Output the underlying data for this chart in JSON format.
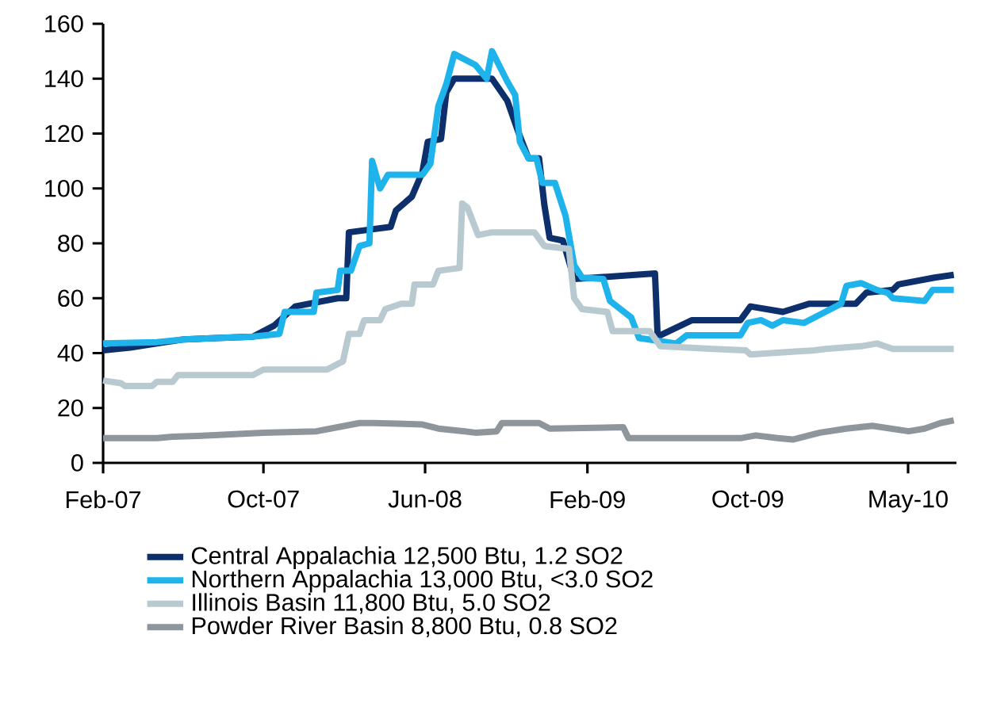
{
  "chart_data": {
    "type": "line",
    "xlim": [
      "2007-02-01",
      "2010-08-12"
    ],
    "xticks": [
      {
        "value": "2007-02-01",
        "label": "Feb-07"
      },
      {
        "value": "2007-10-01",
        "label": "Oct-07"
      },
      {
        "value": "2008-06-01",
        "label": "Jun-08"
      },
      {
        "value": "2009-02-01",
        "label": "Feb-09"
      },
      {
        "value": "2009-10-01",
        "label": "Oct-09"
      },
      {
        "value": "2010-05-31",
        "label": "May-10"
      }
    ],
    "ylim": [
      0,
      160
    ],
    "yticks": [
      0,
      20,
      40,
      60,
      80,
      100,
      120,
      140,
      160
    ],
    "grid": false,
    "legend": "bottom",
    "marker": "none",
    "line_style": "solid",
    "series": [
      {
        "name": "Central Appalachia 12,500 Btu, 1.2 SO2",
        "color": "#0d2f6b",
        "x": [
          "2007-02-01",
          "2007-03-14",
          "2007-04-23",
          "2007-06-03",
          "2007-09-15",
          "2007-10-17",
          "2007-11-18",
          "2008-01-21",
          "2008-02-03",
          "2008-02-07",
          "2008-04-10",
          "2008-04-18",
          "2008-05-12",
          "2008-05-28",
          "2008-06-05",
          "2008-06-25",
          "2008-07-03",
          "2008-07-15",
          "2008-09-10",
          "2008-10-03",
          "2008-10-19",
          "2008-11-04",
          "2008-11-20",
          "2008-11-28",
          "2008-12-06",
          "2008-12-26",
          "2009-01-12",
          "2009-05-14",
          "2009-05-18",
          "2009-07-09",
          "2009-09-20",
          "2009-10-05",
          "2009-11-23",
          "2010-01-02",
          "2010-03-13",
          "2010-03-29",
          "2010-05-08",
          "2010-05-16",
          "2010-07-10",
          "2010-08-08"
        ],
        "values": [
          41,
          42,
          43.5,
          45,
          46,
          50,
          57,
          60,
          60,
          84,
          86,
          92,
          97,
          106,
          117,
          118,
          135,
          140,
          140,
          132,
          121,
          111,
          111,
          94,
          82,
          81,
          67,
          69,
          46,
          52,
          52,
          57,
          55,
          58,
          58,
          62,
          63,
          65,
          67.5,
          68.5
        ]
      },
      {
        "name": "Northern Appalachia 13,000 Btu, <3.0 SO2",
        "color": "#1fb3ec",
        "x": [
          "2007-02-01",
          "2007-04-23",
          "2007-06-03",
          "2007-09-15",
          "2007-10-25",
          "2007-11-02",
          "2007-12-16",
          "2007-12-20",
          "2008-01-21",
          "2008-01-25",
          "2008-02-10",
          "2008-02-23",
          "2008-03-09",
          "2008-03-13",
          "2008-03-25",
          "2008-04-06",
          "2008-05-28",
          "2008-06-09",
          "2008-06-21",
          "2008-07-03",
          "2008-07-15",
          "2008-07-31",
          "2008-08-16",
          "2008-09-02",
          "2008-09-10",
          "2008-10-03",
          "2008-10-15",
          "2008-10-22",
          "2008-11-04",
          "2008-11-16",
          "2008-11-25",
          "2008-12-14",
          "2008-12-30",
          "2009-01-12",
          "2009-01-24",
          "2009-02-25",
          "2009-03-07",
          "2009-03-23",
          "2009-04-08",
          "2009-04-20",
          "2009-06-15",
          "2009-07-01",
          "2009-09-20",
          "2009-10-01",
          "2009-10-21",
          "2009-11-07",
          "2009-11-23",
          "2009-12-25",
          "2010-01-26",
          "2010-02-19",
          "2010-02-27",
          "2010-03-21",
          "2010-04-14",
          "2010-04-30",
          "2010-05-08",
          "2010-06-25",
          "2010-07-07",
          "2010-08-08"
        ],
        "values": [
          43.5,
          44,
          45,
          46,
          47,
          55,
          55,
          62,
          63,
          70,
          70,
          79,
          80,
          110,
          100,
          105,
          105,
          109,
          130,
          138,
          149,
          147,
          145,
          140,
          150,
          139,
          134,
          117,
          111,
          111,
          102,
          102,
          90,
          72,
          67.5,
          67,
          59,
          56,
          53,
          45.5,
          43.5,
          46.5,
          46.5,
          51,
          52,
          50,
          52,
          51,
          55,
          58,
          64.5,
          65.5,
          63,
          62,
          60,
          59,
          63,
          63
        ]
      },
      {
        "name": "Illinois Basin 11,800 Btu, 5.0 SO2",
        "color": "#b8cad0",
        "x": [
          "2007-02-01",
          "2007-02-28",
          "2007-03-06",
          "2007-04-16",
          "2007-04-23",
          "2007-05-17",
          "2007-05-25",
          "2007-09-15",
          "2007-10-01",
          "2008-01-05",
          "2008-01-21",
          "2008-01-29",
          "2008-02-07",
          "2008-02-23",
          "2008-03-01",
          "2008-03-25",
          "2008-04-02",
          "2008-04-26",
          "2008-05-12",
          "2008-05-16",
          "2008-06-13",
          "2008-06-21",
          "2008-07-23",
          "2008-07-27",
          "2008-08-04",
          "2008-08-20",
          "2008-09-10",
          "2008-11-13",
          "2008-11-28",
          "2009-01-04",
          "2009-01-12",
          "2009-01-24",
          "2009-03-03",
          "2009-03-11",
          "2009-05-06",
          "2009-05-22",
          "2009-08-10",
          "2009-09-28",
          "2009-10-05",
          "2010-01-10",
          "2010-01-26",
          "2010-03-21",
          "2010-04-14",
          "2010-05-08",
          "2010-08-08"
        ],
        "values": [
          30,
          29,
          28,
          28,
          29.5,
          29.5,
          32,
          32,
          34,
          34,
          36,
          37,
          47,
          47,
          52,
          52,
          56,
          58,
          58,
          65,
          65,
          70,
          71,
          94.5,
          93,
          83,
          84,
          84,
          79,
          78,
          60,
          56,
          55,
          48,
          48,
          42.5,
          41.5,
          41,
          39.5,
          41,
          41.5,
          42.5,
          43.5,
          41.5,
          41.5
        ]
      },
      {
        "name": "Powder River Basin 8,800 Btu, 0.8 SO2",
        "color": "#8e969c",
        "x": [
          "2007-02-01",
          "2007-04-23",
          "2007-05-17",
          "2007-07-13",
          "2007-10-01",
          "2007-12-20",
          "2008-01-21",
          "2008-02-23",
          "2008-03-16",
          "2008-05-28",
          "2008-06-21",
          "2008-07-31",
          "2008-08-16",
          "2008-09-17",
          "2008-09-25",
          "2008-11-20",
          "2008-12-06",
          "2009-03-27",
          "2009-04-04",
          "2009-09-20",
          "2009-10-13",
          "2009-11-15",
          "2009-12-08",
          "2010-01-18",
          "2010-02-27",
          "2010-04-07",
          "2010-06-01",
          "2010-06-25",
          "2010-07-19",
          "2010-08-08"
        ],
        "values": [
          9,
          9,
          9.5,
          10,
          11,
          11.5,
          13,
          14.5,
          14.5,
          14,
          12.5,
          11.5,
          11,
          11.5,
          14.5,
          14.5,
          12.5,
          13,
          9,
          9,
          10,
          9,
          8.5,
          11,
          12.5,
          13.5,
          11.5,
          12.5,
          14.5,
          15.5
        ]
      }
    ]
  }
}
